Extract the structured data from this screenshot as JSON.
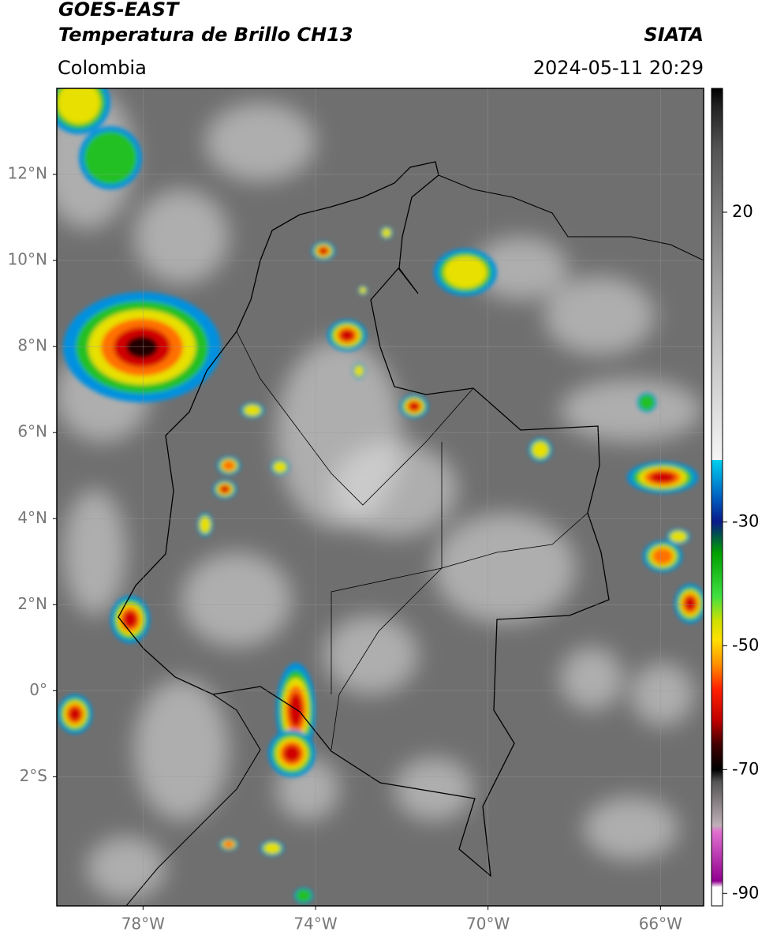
{
  "header": {
    "title": "GOES-EAST",
    "subtitle": "Temperatura de Brillo CH13",
    "source": "SIATA",
    "region": "Colombia",
    "datetime": "2024-05-11 20:29"
  },
  "map": {
    "xlim": [
      -80,
      -65
    ],
    "ylim": [
      -5,
      14
    ],
    "grid": true,
    "xticks": [
      {
        "value": -78,
        "label": "78°W"
      },
      {
        "value": -74,
        "label": "74°W"
      },
      {
        "value": -70,
        "label": "70°W"
      },
      {
        "value": -66,
        "label": "66°W"
      }
    ],
    "yticks": [
      {
        "value": 12,
        "label": "12°N"
      },
      {
        "value": 10,
        "label": "10°N"
      },
      {
        "value": 8,
        "label": "8°N"
      },
      {
        "value": 6,
        "label": "6°N"
      },
      {
        "value": 4,
        "label": "4°N"
      },
      {
        "value": 2,
        "label": "2°N"
      },
      {
        "value": 0,
        "label": "0°"
      },
      {
        "value": -2,
        "label": "2°S"
      }
    ]
  },
  "colorbar": {
    "range": [
      -92,
      40
    ],
    "ticks": [
      20,
      -30,
      -50,
      -70,
      -90
    ],
    "stops": [
      {
        "value": 40,
        "color": "#000000"
      },
      {
        "value": 37,
        "color": "#222222"
      },
      {
        "value": 30,
        "color": "#555555"
      },
      {
        "value": 20,
        "color": "#7a7a7a"
      },
      {
        "value": 0,
        "color": "#bbbbbb"
      },
      {
        "value": -20,
        "color": "#f5f5f5"
      },
      {
        "value": -20,
        "color": "#00d0f0"
      },
      {
        "value": -26,
        "color": "#0060c0"
      },
      {
        "value": -30,
        "color": "#0a1a8a"
      },
      {
        "value": -32,
        "color": "#005050"
      },
      {
        "value": -35,
        "color": "#00a000"
      },
      {
        "value": -42,
        "color": "#40e040"
      },
      {
        "value": -46,
        "color": "#d0e000"
      },
      {
        "value": -49,
        "color": "#ffe000"
      },
      {
        "value": -53,
        "color": "#ff9000"
      },
      {
        "value": -57,
        "color": "#ff2000"
      },
      {
        "value": -62,
        "color": "#c00000"
      },
      {
        "value": -66,
        "color": "#400000"
      },
      {
        "value": -70,
        "color": "#000000"
      },
      {
        "value": -72,
        "color": "#555555"
      },
      {
        "value": -79,
        "color": "#c0b0b8"
      },
      {
        "value": -80,
        "color": "#e070d0"
      },
      {
        "value": -88,
        "color": "#900090"
      },
      {
        "value": -89,
        "color": "#ffffff"
      },
      {
        "value": -92,
        "color": "#ffffff"
      }
    ]
  }
}
